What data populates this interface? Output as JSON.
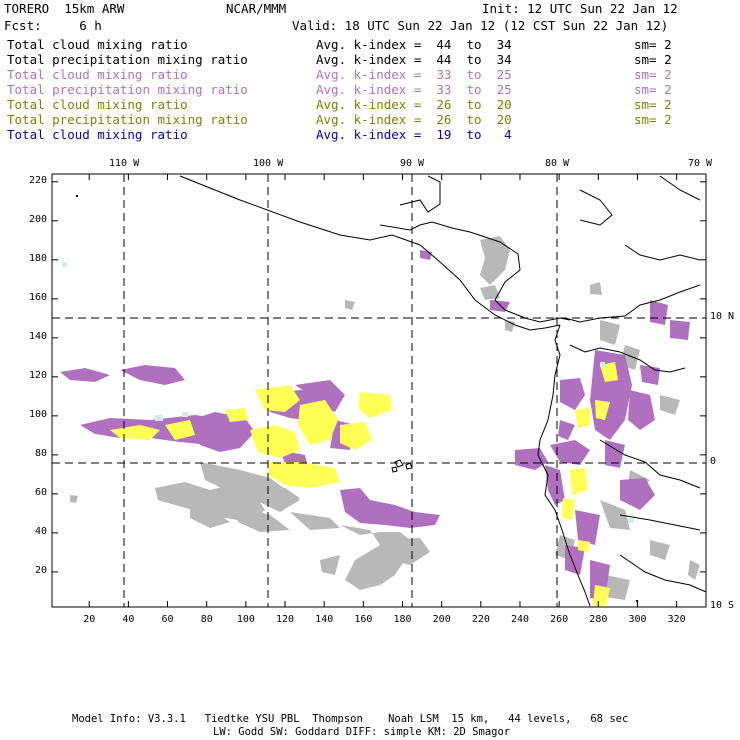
{
  "header": {
    "model": "TORERO  15km ARW",
    "org": "NCAR/MMM",
    "init": "Init: 12 UTC Sun 22 Jan 12",
    "fcst": "Fcst:     6 h",
    "valid": "Valid: 18 UTC Sun 22 Jan 12 (12 CST Sun 22 Jan 12)"
  },
  "legend": [
    {
      "label": "Total cloud mixing ratio",
      "index": "Avg. k-index =  44  to  34",
      "sm": "sm= 2",
      "color": "#000000"
    },
    {
      "label": "Total precipitation mixing ratio",
      "index": "Avg. k-index =  44  to  34",
      "sm": "sm= 2",
      "color": "#000000"
    },
    {
      "label": "Total cloud mixing ratio",
      "index": "Avg. k-index =  33  to  25",
      "sm": "sm= 2",
      "color": "#b070c0"
    },
    {
      "label": "Total precipitation mixing ratio",
      "index": "Avg. k-index =  33  to  25",
      "sm": "sm= 2",
      "color": "#b070c0"
    },
    {
      "label": "Total cloud mixing ratio",
      "index": "Avg. k-index =  26  to  20",
      "sm": "sm= 2",
      "color": "#808000"
    },
    {
      "label": "Total precipitation mixing ratio",
      "index": "Avg. k-index =  26  to  20",
      "sm": "sm= 2",
      "color": "#808000"
    },
    {
      "label": "Total cloud mixing ratio",
      "index": "Avg. k-index =  19  to   4",
      "sm": "",
      "color": "#0000c0"
    }
  ],
  "axes": {
    "top_lon": [
      "110 W",
      "100 W",
      "90 W",
      "80 W",
      "70 W"
    ],
    "right_lat": [
      "10 N",
      "0",
      "10 S"
    ],
    "y_ticks": [
      "220",
      "200",
      "180",
      "160",
      "140",
      "120",
      "100",
      "80",
      "60",
      "40",
      "20"
    ],
    "x_ticks": [
      "20",
      "40",
      "60",
      "80",
      "100",
      "120",
      "140",
      "160",
      "180",
      "200",
      "220",
      "240",
      "260",
      "280",
      "300",
      "320"
    ]
  },
  "footer": {
    "line1": "Model Info: V3.3.1   Tiedtke YSU PBL  Thompson    Noah LSM  15 km,   44 levels,   68 sec",
    "line2": "LW: Godd SW: Goddard DIFF: simple KM: 2D Smagor"
  },
  "colors": {
    "purple": "#b070c0",
    "yellow": "#ffff55",
    "gray": "#b8b8b8",
    "cyan": "#c8f0f0"
  }
}
